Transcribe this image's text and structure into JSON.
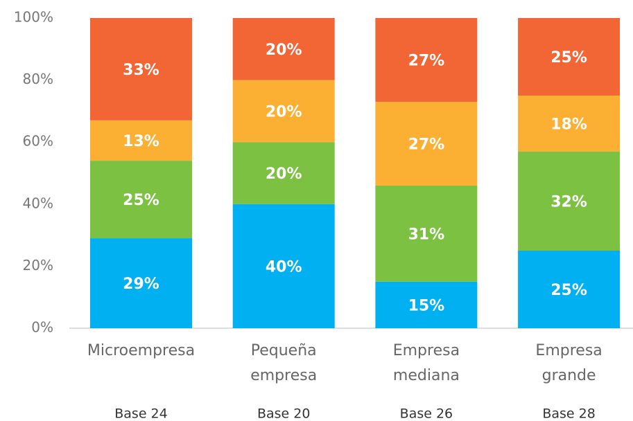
{
  "chart_data": {
    "type": "stacked_bar",
    "categories": [
      "Microempresa",
      "Pequeña empresa",
      "Empresa mediana",
      "Empresa grande"
    ],
    "annotations": [
      "Base 24",
      "Base 20",
      "Base 26",
      "Base 28"
    ],
    "series": [
      {
        "color": "#00b0f0",
        "values": [
          29,
          40,
          15,
          25
        ],
        "value_labels": [
          "29%",
          "40%",
          "15%",
          "25%"
        ]
      },
      {
        "color": "#7cc142",
        "values": [
          25,
          20,
          31,
          32
        ],
        "value_labels": [
          "25%",
          "20%",
          "31%",
          "32%"
        ]
      },
      {
        "color": "#fbb034",
        "values": [
          13,
          20,
          27,
          18
        ],
        "value_labels": [
          "13%",
          "20%",
          "27%",
          "18%"
        ]
      },
      {
        "color": "#f26535",
        "values": [
          33,
          20,
          27,
          25
        ],
        "value_labels": [
          "33%",
          "20%",
          "27%",
          "25%"
        ]
      }
    ],
    "ylim": [
      0,
      100
    ],
    "yticks": [
      {
        "value": 0,
        "label": "0%"
      },
      {
        "value": 20,
        "label": "20%"
      },
      {
        "value": 40,
        "label": "40%"
      },
      {
        "value": 60,
        "label": "60%"
      },
      {
        "value": 80,
        "label": "80%"
      },
      {
        "value": 100,
        "label": "100%"
      }
    ],
    "grid": false
  }
}
